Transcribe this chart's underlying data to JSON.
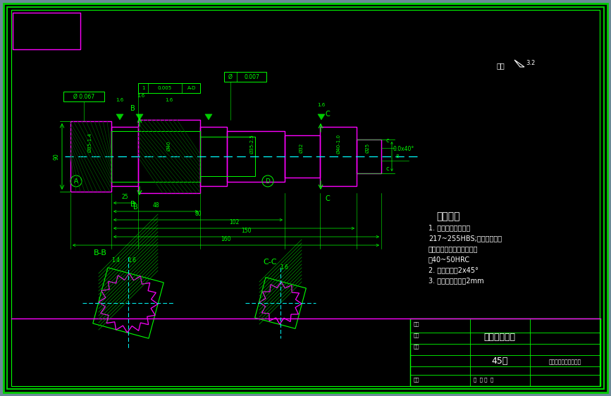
{
  "bg_color": "#000000",
  "fig_bg": "#6b8a96",
  "magenta": "#ff00ff",
  "cyan": "#00ffff",
  "green": "#00cc00",
  "bright_green": "#00ff00",
  "white": "#ffffff",
  "title_text": "技术要求",
  "tech_req": [
    "1. 调质处理，硬度为",
    "217~255HBS;花键部分进行",
    "高频淬火，淬火后齿面硬度",
    "为40~50HRC",
    "2. 未注明倒角2x45°",
    "3. 未注明圆角半径2mm"
  ],
  "tb_title": "取力器输出轴",
  "tb_material": "45钢",
  "tb_school": "湖南株洲大学生动华能",
  "roughness": "其余",
  "section_b": "B-B",
  "section_c": "C-C"
}
